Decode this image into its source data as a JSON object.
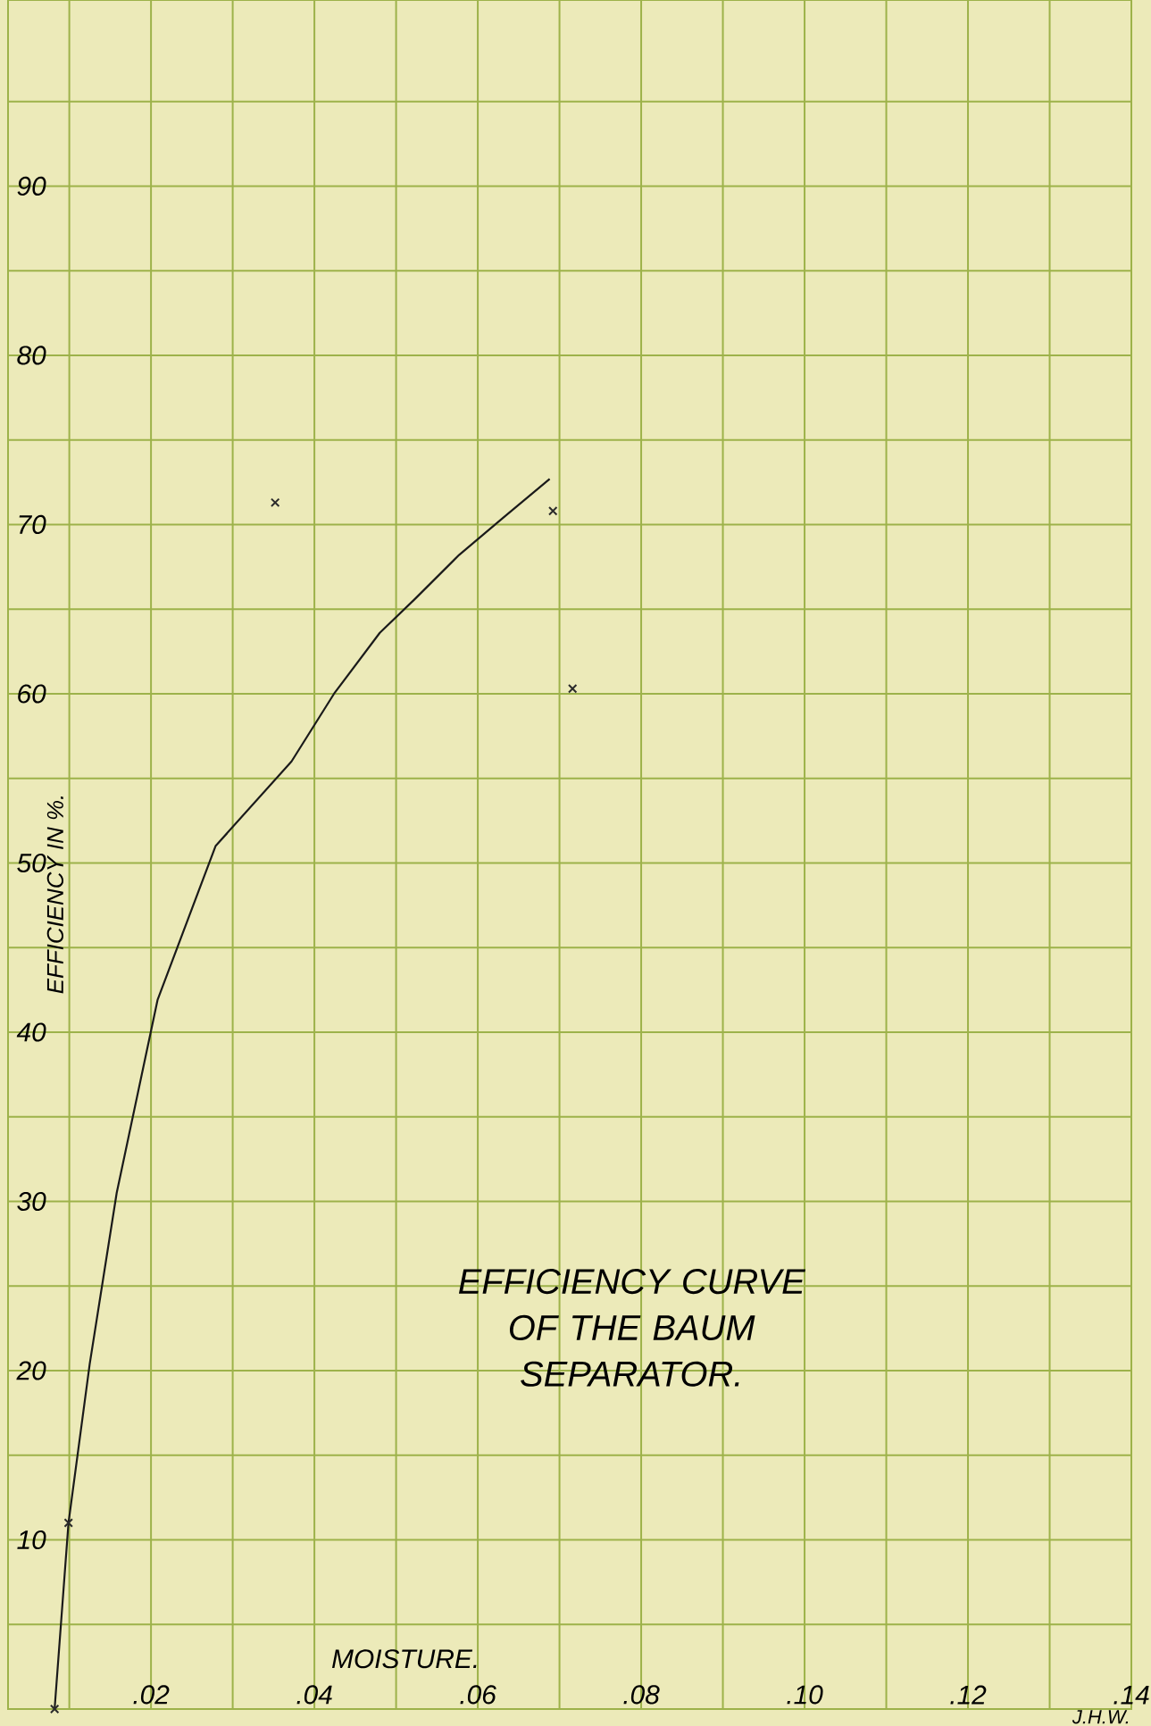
{
  "chart_data": {
    "type": "line",
    "title": "EFFICIENCY CURVE OF THE BAUM SEPARATOR.",
    "xlabel": "MOISTURE.",
    "ylabel": "EFFICIENCY IN %.",
    "annotations": [
      "J.H.W."
    ],
    "xlim": [
      0.0025,
      0.14
    ],
    "ylim": [
      0,
      101
    ],
    "xticks": [
      {
        "value": 0.01,
        "label": null
      },
      {
        "value": 0.02,
        "label": ".02"
      },
      {
        "value": 0.03,
        "label": null
      },
      {
        "value": 0.04,
        "label": ".04"
      },
      {
        "value": 0.05,
        "label": null
      },
      {
        "value": 0.06,
        "label": ".06"
      },
      {
        "value": 0.07,
        "label": null
      },
      {
        "value": 0.08,
        "label": ".08"
      },
      {
        "value": 0.09,
        "label": null
      },
      {
        "value": 0.1,
        "label": ".10"
      },
      {
        "value": 0.11,
        "label": null
      },
      {
        "value": 0.12,
        "label": ".12"
      },
      {
        "value": 0.13,
        "label": null
      },
      {
        "value": 0.14,
        "label": ".14"
      }
    ],
    "yticks": [
      {
        "value": 5,
        "label": null
      },
      10,
      {
        "value": 15,
        "label": null
      },
      20,
      {
        "value": 25,
        "label": null
      },
      30,
      {
        "value": 35,
        "label": null
      },
      40,
      {
        "value": 45,
        "label": null
      },
      50,
      {
        "value": 55,
        "label": null
      },
      60,
      {
        "value": 65,
        "label": null
      },
      70,
      {
        "value": 75,
        "label": null
      },
      80,
      {
        "value": 85,
        "label": null
      },
      90,
      {
        "value": 95,
        "label": null
      }
    ],
    "grid": true,
    "series": [
      {
        "color": "#1a1a1a",
        "marker": "none",
        "x": [
          0.0082,
          0.0099,
          0.0125,
          0.0158,
          0.0208,
          0.0279,
          0.0372,
          0.0424,
          0.048,
          0.0523,
          0.0577,
          0.0631,
          0.0688
        ],
        "values": [
          0,
          11,
          20.4,
          30.5,
          41.9,
          51,
          56,
          60,
          63.6,
          65.6,
          68.2,
          70.4,
          72.7
        ]
      },
      {
        "type": "scatter",
        "color": "#2a2a2a",
        "marker": "cross",
        "x": [
          0.0082,
          0.0099,
          0.0352,
          0.0692,
          0.0716
        ],
        "values": [
          0,
          11,
          71.3,
          70.8,
          60.3
        ]
      }
    ]
  }
}
